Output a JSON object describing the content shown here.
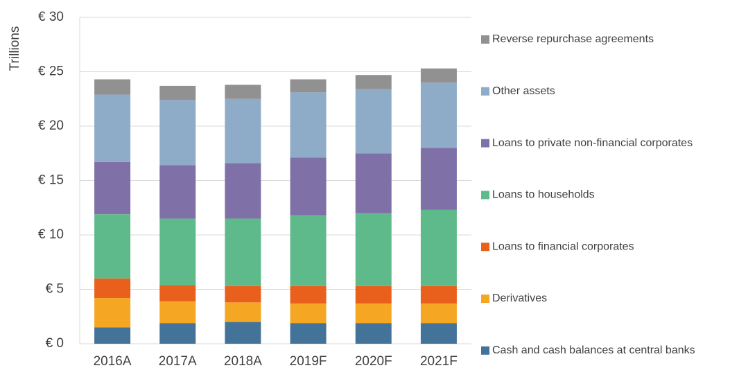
{
  "chart_data": {
    "type": "stacked_bar",
    "y_label": "Trillions",
    "categories": [
      "2016A",
      "2017A",
      "2018A",
      "2019F",
      "2020F",
      "2021F"
    ],
    "series": [
      {
        "name": "Cash and cash balances at central banks",
        "color": "#44739a",
        "values": [
          1.5,
          1.9,
          2.0,
          1.9,
          1.9,
          1.9
        ]
      },
      {
        "name": "Derivatives",
        "color": "#f5a623",
        "values": [
          2.7,
          2.0,
          1.8,
          1.8,
          1.8,
          1.8
        ]
      },
      {
        "name": "Loans to financial corporates",
        "color": "#e8601c",
        "values": [
          1.8,
          1.5,
          1.5,
          1.6,
          1.6,
          1.6
        ]
      },
      {
        "name": "Loans to households",
        "color": "#5fba8b",
        "values": [
          5.9,
          6.1,
          6.2,
          6.5,
          6.7,
          7.0
        ]
      },
      {
        "name": "Loans to private non-financial corporates",
        "color": "#8070a8",
        "values": [
          4.8,
          4.9,
          5.1,
          5.3,
          5.5,
          5.7
        ]
      },
      {
        "name": "Other assets",
        "color": "#8eabc8",
        "values": [
          6.2,
          6.0,
          5.9,
          6.0,
          5.9,
          6.0
        ]
      },
      {
        "name": "Reverse repurchase agreements",
        "color": "#919191",
        "values": [
          1.4,
          1.3,
          1.3,
          1.2,
          1.3,
          1.3
        ]
      }
    ],
    "ylim": [
      0,
      30
    ],
    "yticks": [
      {
        "value": 0,
        "label": "€ 0"
      },
      {
        "value": 5,
        "label": "€ 5"
      },
      {
        "value": 10,
        "label": "€ 10"
      },
      {
        "value": 15,
        "label": "€ 15"
      },
      {
        "value": 20,
        "label": "€ 20"
      },
      {
        "value": 25,
        "label": "€ 25"
      },
      {
        "value": 30,
        "label": "€ 30"
      }
    ],
    "grid": true,
    "legend": "right"
  }
}
